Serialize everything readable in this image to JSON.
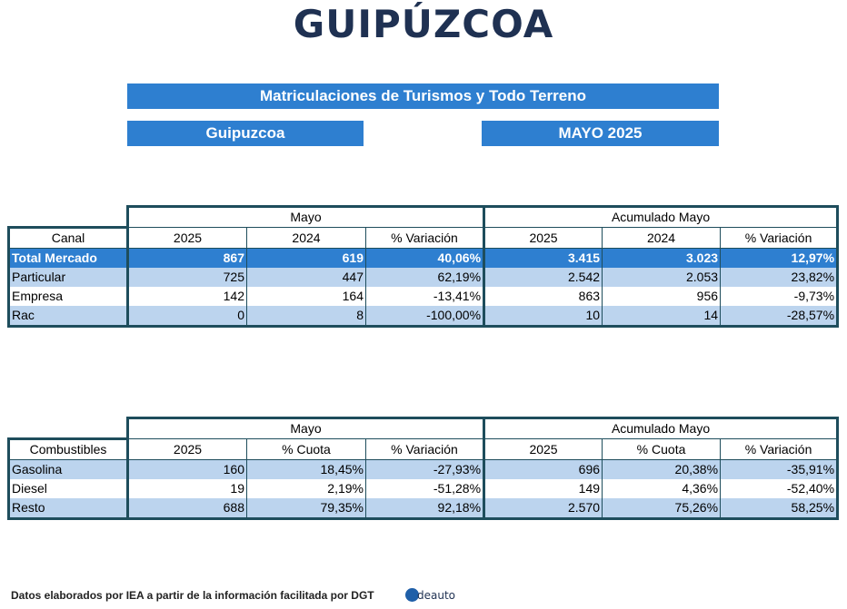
{
  "title": "GUIPÚZCOA",
  "banner_main": "Matriculaciones de Turismos y Todo Terreno",
  "banner_region": "Guipuzcoa",
  "banner_period": "MAYO 2025",
  "table1": {
    "group_left": "Mayo",
    "group_right": "Acumulado Mayo",
    "headers": [
      "Canal",
      "2025",
      "2024",
      "% Variación",
      "2025",
      "2024",
      "% Variación"
    ],
    "rows": [
      [
        "Total Mercado",
        "867",
        "619",
        "40,06%",
        "3.415",
        "3.023",
        "12,97%"
      ],
      [
        "Particular",
        "725",
        "447",
        "62,19%",
        "2.542",
        "2.053",
        "23,82%"
      ],
      [
        "Empresa",
        "142",
        "164",
        "-13,41%",
        "863",
        "956",
        "-9,73%"
      ],
      [
        "Rac",
        "0",
        "8",
        "-100,00%",
        "10",
        "14",
        "-28,57%"
      ]
    ]
  },
  "table2": {
    "group_left": "Mayo",
    "group_right": "Acumulado Mayo",
    "headers": [
      "Combustibles",
      "2025",
      "% Cuota",
      "% Variación",
      "2025",
      "% Cuota",
      "% Variación"
    ],
    "rows": [
      [
        "Gasolina",
        "160",
        "18,45%",
        "-27,93%",
        "696",
        "20,38%",
        "-35,91%"
      ],
      [
        "Diesel",
        "19",
        "2,19%",
        "-51,28%",
        "149",
        "4,36%",
        "-52,40%"
      ],
      [
        "Resto",
        "688",
        "79,35%",
        "92,18%",
        "2.570",
        "75,26%",
        "58,25%"
      ]
    ]
  },
  "footer": "Datos elaborados por IEA a partir de la información facilitada por DGT",
  "logo_text": "deauto",
  "colors": {
    "banner": "#2e7fd0",
    "title": "#1f3152",
    "row_light": "#bcd4ee",
    "border": "#1e4d5c"
  }
}
